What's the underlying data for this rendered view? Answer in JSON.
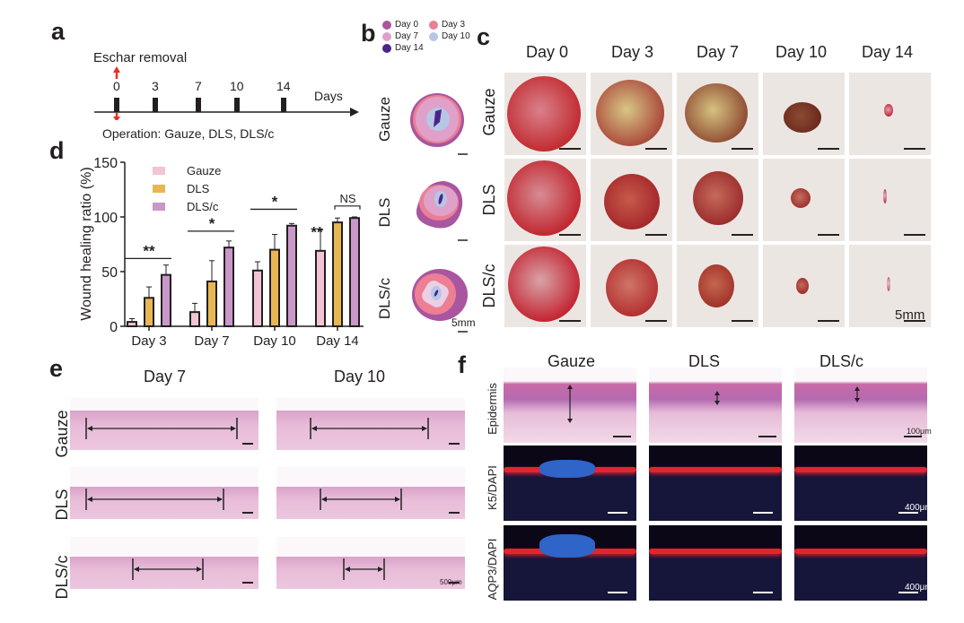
{
  "panels": {
    "a": {
      "label": "a",
      "top_event": "Eschar removal",
      "bottom_event": "Operation: Gauze, DLS, DLS/c",
      "timeline_ticks": [
        "0",
        "3",
        "7",
        "10",
        "14"
      ],
      "axis_label": "Days",
      "arrow_color": "#e8311e"
    },
    "b": {
      "label": "b",
      "legend": [
        {
          "name": "Day 0",
          "color": "#a9559f"
        },
        {
          "name": "Day 3",
          "color": "#ec7f93"
        },
        {
          "name": "Day 7",
          "color": "#dfa1c9"
        },
        {
          "name": "Day 10",
          "color": "#b8c6e6"
        },
        {
          "name": "Day 14",
          "color": "#4b2586"
        }
      ],
      "rows": [
        "Gauze",
        "DLS",
        "DLS/c"
      ],
      "scale": "5mm"
    },
    "c": {
      "label": "c",
      "columns": [
        "Day 0",
        "Day 3",
        "Day 7",
        "Day 10",
        "Day 14"
      ],
      "rows": [
        "Gauze",
        "DLS",
        "DLS/c"
      ],
      "scale": "5mm"
    },
    "d": {
      "label": "d"
    },
    "e": {
      "label": "e",
      "columns": [
        "Day 7",
        "Day 10"
      ],
      "rows": [
        "Gauze",
        "DLS",
        "DLS/c"
      ],
      "scale": "500μm"
    },
    "f": {
      "label": "f",
      "columns": [
        "Gauze",
        "DLS",
        "DLS/c"
      ],
      "rows": [
        "Epidermis",
        "K5/DAPI",
        "AQP3/DAPI"
      ],
      "scales": [
        "100μm",
        "400μm",
        "400μm"
      ]
    }
  },
  "chart_data": {
    "type": "bar",
    "title": "",
    "xlabel": "",
    "ylabel": "Wound healing ratio (%)",
    "ylim": [
      0,
      150
    ],
    "yticks": [
      0,
      50,
      100,
      150
    ],
    "categories": [
      "Day 3",
      "Day 7",
      "Day 10",
      "Day 14"
    ],
    "series": [
      {
        "name": "Gauze",
        "color": "#f2c4d4",
        "values": [
          4,
          13,
          51,
          69
        ],
        "errors": [
          3,
          8,
          8,
          19
        ]
      },
      {
        "name": "DLS",
        "color": "#e8b754",
        "values": [
          26,
          41,
          70,
          95
        ],
        "errors": [
          10,
          19,
          14,
          4
        ]
      },
      {
        "name": "DLS/c",
        "color": "#c997c8",
        "values": [
          47,
          72,
          92,
          99
        ],
        "errors": [
          9,
          6,
          2,
          1
        ]
      }
    ],
    "legend_position": "top-left",
    "annotations": [
      {
        "category": "Day 3",
        "text": "**",
        "type": "bracket",
        "level": 62
      },
      {
        "category": "Day 7",
        "text": "*",
        "type": "bracket",
        "level": 87
      },
      {
        "category": "Day 10",
        "text": "*",
        "type": "bracket",
        "level": 107
      },
      {
        "category": "Day 14",
        "text": "**",
        "type": "above-bar",
        "series": "Gauze"
      },
      {
        "category": "Day 14",
        "text": "NS",
        "type": "bracket-pair",
        "level": 110
      }
    ],
    "grid": false
  }
}
